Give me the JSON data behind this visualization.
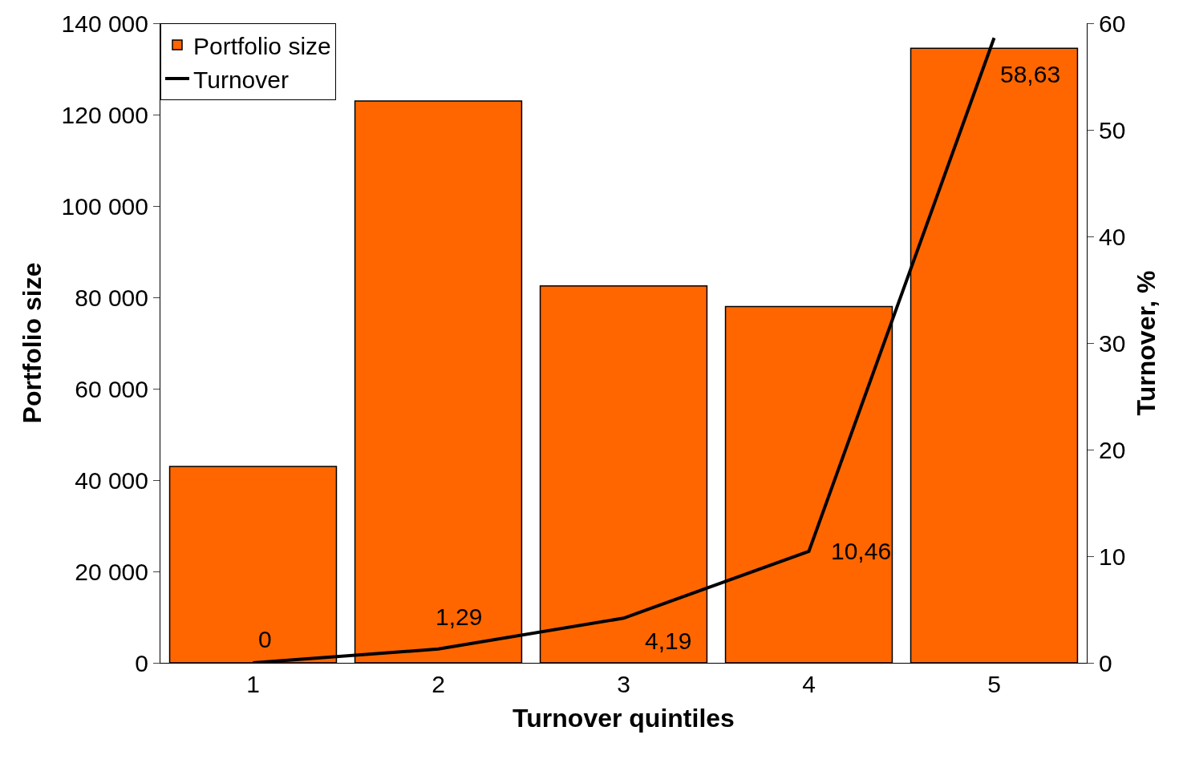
{
  "chart_data": {
    "type": "bar",
    "xlabel": "Turnover quintiles",
    "ylabel": "Portfolio size",
    "y2label": "Turnover, %",
    "categories": [
      "1",
      "2",
      "3",
      "4",
      "5"
    ],
    "series": [
      {
        "name": "Portfolio size",
        "color": "#ff6600",
        "values": [
          43000,
          123000,
          82500,
          78000,
          134500
        ]
      },
      {
        "name": "Turnover",
        "type": "line",
        "axis": "y2",
        "color": "#000000",
        "values": [
          0,
          1.29,
          4.19,
          10.46,
          58.63
        ],
        "value_labels": [
          "0",
          "1,29",
          "4,19",
          "10,46",
          "58,63"
        ]
      }
    ],
    "ylim": [
      0,
      140000
    ],
    "yticks": [
      {
        "value": 0,
        "label": "0"
      },
      {
        "value": 20000,
        "label": "20 000"
      },
      {
        "value": 40000,
        "label": "40 000"
      },
      {
        "value": 60000,
        "label": "60 000"
      },
      {
        "value": 80000,
        "label": "80 000"
      },
      {
        "value": 100000,
        "label": "100 000"
      },
      {
        "value": 120000,
        "label": "120 000"
      },
      {
        "value": 140000,
        "label": "140 000"
      }
    ],
    "y2lim": [
      0,
      60
    ],
    "y2ticks": [
      0,
      10,
      20,
      30,
      40,
      50,
      60
    ],
    "legend": "top left",
    "marker": "none",
    "line_style": "solid"
  }
}
